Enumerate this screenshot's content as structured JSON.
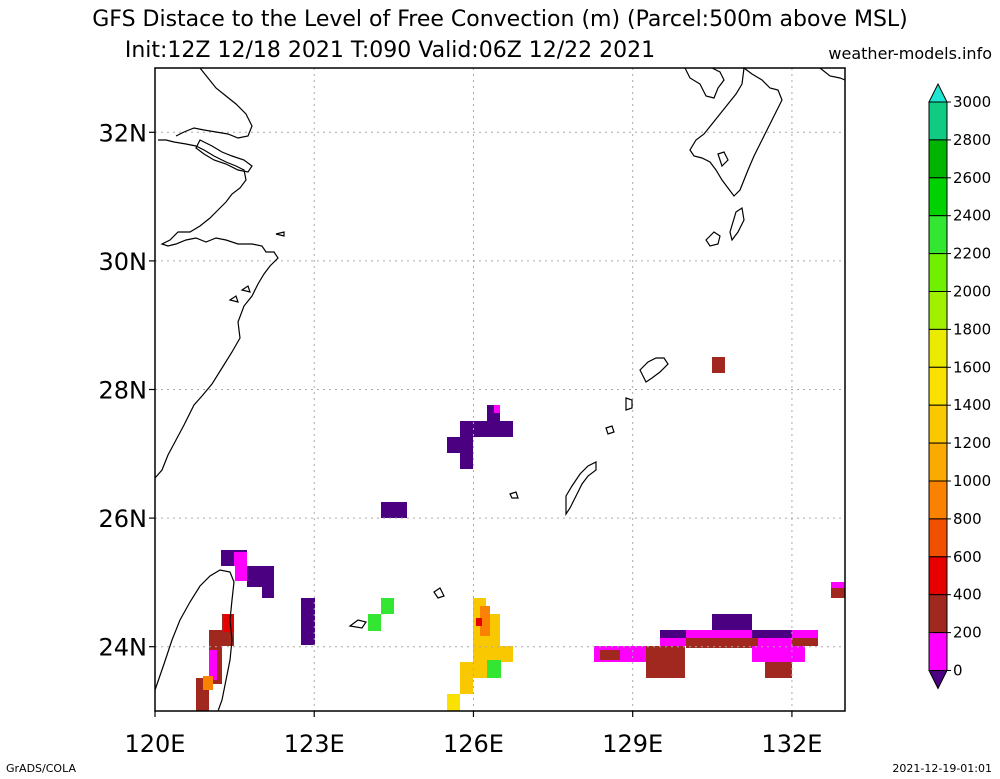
{
  "title": {
    "line1": "GFS Distace to the Level of Free Convection (m) (Parcel:500m above MSL)",
    "line2": "Init:12Z 12/18 2021 T:090 Valid:06Z 12/22 2021"
  },
  "credit": "weather-models.info",
  "footer": {
    "left": "GrADS/COLA",
    "right": "2021-12-19-01:01"
  },
  "axes": {
    "x_ticks": [
      "120E",
      "123E",
      "126E",
      "129E",
      "132E"
    ],
    "y_ticks": [
      "32N",
      "30N",
      "28N",
      "26N",
      "24N"
    ],
    "lon_range": [
      120,
      133
    ],
    "lat_range": [
      23,
      33
    ]
  },
  "colorbar": {
    "labels": [
      "3000",
      "2800",
      "2600",
      "2400",
      "2200",
      "2000",
      "1800",
      "1600",
      "1400",
      "1200",
      "1000",
      "800",
      "600",
      "400",
      "200",
      "0"
    ],
    "colors": [
      "#1ee6d2",
      "#0fcc82",
      "#00b400",
      "#00d200",
      "#32e632",
      "#6ef000",
      "#a0f000",
      "#ebeb00",
      "#fae100",
      "#fac800",
      "#faaa00",
      "#fa8200",
      "#f05000",
      "#e60000",
      "#a0281e",
      "#ff00ff",
      "#4b0082"
    ],
    "color_meaning": "colors listed from top triangle (>3000) to bottom triangle (<0)"
  },
  "colors": {
    "coast": "#000000",
    "grid": "#aaaaaa",
    "purple": "#4b0082",
    "magenta": "#ff00ff",
    "brown": "#a0281e",
    "red": "#e60000",
    "orange": "#fa8200",
    "gold": "#fac800",
    "yellow": "#fae100",
    "green": "#32e632"
  }
}
